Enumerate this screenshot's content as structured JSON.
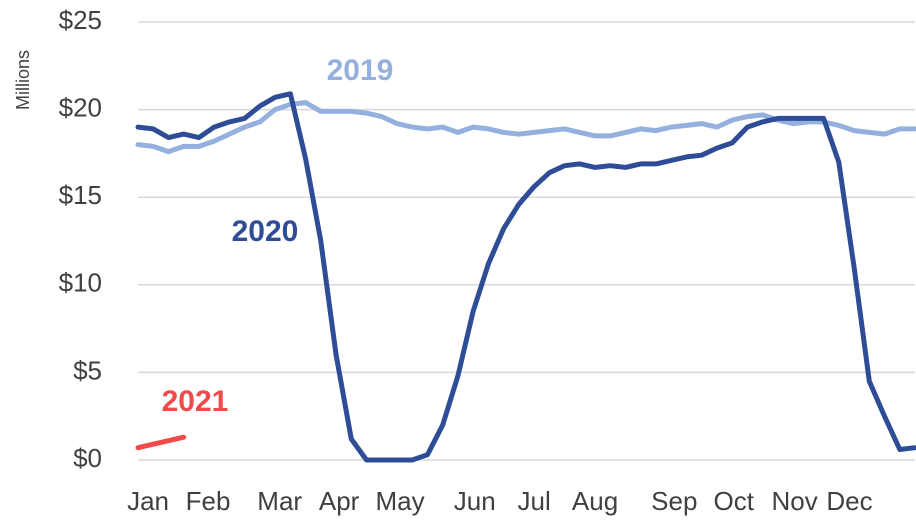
{
  "chart_data": {
    "type": "line",
    "y_label": "Millions",
    "x": [
      1,
      2,
      3,
      4,
      5,
      6,
      7,
      8,
      9,
      10,
      11,
      12,
      13,
      14,
      15,
      16,
      17,
      18,
      19,
      20,
      21,
      22,
      23,
      24,
      25,
      26,
      27,
      28,
      29,
      30,
      31,
      32,
      33,
      34,
      35,
      36,
      37,
      38,
      39,
      40,
      41,
      42,
      43,
      44,
      45,
      46,
      47,
      48,
      49,
      50,
      51,
      52
    ],
    "xlim": [
      1,
      52
    ],
    "xticks": [
      {
        "value": 1.66,
        "label": "Jan"
      },
      {
        "value": 5.6,
        "label": "Feb"
      },
      {
        "value": 10.3,
        "label": "Mar"
      },
      {
        "value": 14.2,
        "label": "Apr"
      },
      {
        "value": 18.2,
        "label": "May"
      },
      {
        "value": 23.1,
        "label": "Jun"
      },
      {
        "value": 27.0,
        "label": "Jul"
      },
      {
        "value": 31.0,
        "label": "Aug"
      },
      {
        "value": 36.2,
        "label": "Sep"
      },
      {
        "value": 40.1,
        "label": "Oct"
      },
      {
        "value": 44.1,
        "label": "Nov"
      },
      {
        "value": 47.7,
        "label": "Dec"
      }
    ],
    "ylim": [
      0,
      25
    ],
    "yticks": [
      {
        "value": 0,
        "label": "$0"
      },
      {
        "value": 5,
        "label": "$5"
      },
      {
        "value": 10,
        "label": "$10"
      },
      {
        "value": 15,
        "label": "$15"
      },
      {
        "value": 20,
        "label": "$20"
      },
      {
        "value": 25,
        "label": "$25"
      }
    ],
    "grid": true,
    "series": [
      {
        "name": "2019",
        "color": "#94b0de",
        "values": [
          18.0,
          17.9,
          17.6,
          17.9,
          17.9,
          18.2,
          18.6,
          19.0,
          19.3,
          20.0,
          20.3,
          20.4,
          19.9,
          19.9,
          19.9,
          19.8,
          19.6,
          19.2,
          19.0,
          18.9,
          19.0,
          18.7,
          19.0,
          18.9,
          18.7,
          18.6,
          18.7,
          18.8,
          18.9,
          18.7,
          18.5,
          18.5,
          18.7,
          18.9,
          18.8,
          19.0,
          19.1,
          19.2,
          19.0,
          19.4,
          19.6,
          19.7,
          19.4,
          19.2,
          19.3,
          19.3,
          19.1,
          18.8,
          18.7,
          18.6,
          18.9,
          18.9
        ]
      },
      {
        "name": "2020",
        "color": "#2e4d96",
        "values": [
          19.0,
          18.9,
          18.4,
          18.6,
          18.4,
          19.0,
          19.3,
          19.5,
          20.2,
          20.7,
          20.9,
          17.2,
          12.5,
          6,
          1.2,
          0,
          0,
          0,
          0,
          0.3,
          2,
          4.8,
          8.5,
          11.2,
          13.2,
          14.6,
          15.6,
          16.4,
          16.8,
          16.9,
          16.7,
          16.8,
          16.7,
          16.9,
          16.9,
          17.1,
          17.3,
          17.4,
          17.8,
          18.1,
          19.0,
          19.3,
          19.5,
          19.5,
          19.5,
          19.5,
          17.0,
          11,
          4.5,
          2.5,
          0.6,
          0.7
        ]
      },
      {
        "name": "2021",
        "color": "#f04a4a",
        "values": [
          0.7,
          0.9,
          1.1,
          1.3,
          null,
          null,
          null,
          null,
          null,
          null,
          null,
          null,
          null,
          null,
          null,
          null,
          null,
          null,
          null,
          null,
          null,
          null,
          null,
          null,
          null,
          null,
          null,
          null,
          null,
          null,
          null,
          null,
          null,
          null,
          null,
          null,
          null,
          null,
          null,
          null,
          null,
          null,
          null,
          null,
          null,
          null,
          null,
          null,
          null,
          null,
          null,
          null
        ]
      }
    ]
  }
}
